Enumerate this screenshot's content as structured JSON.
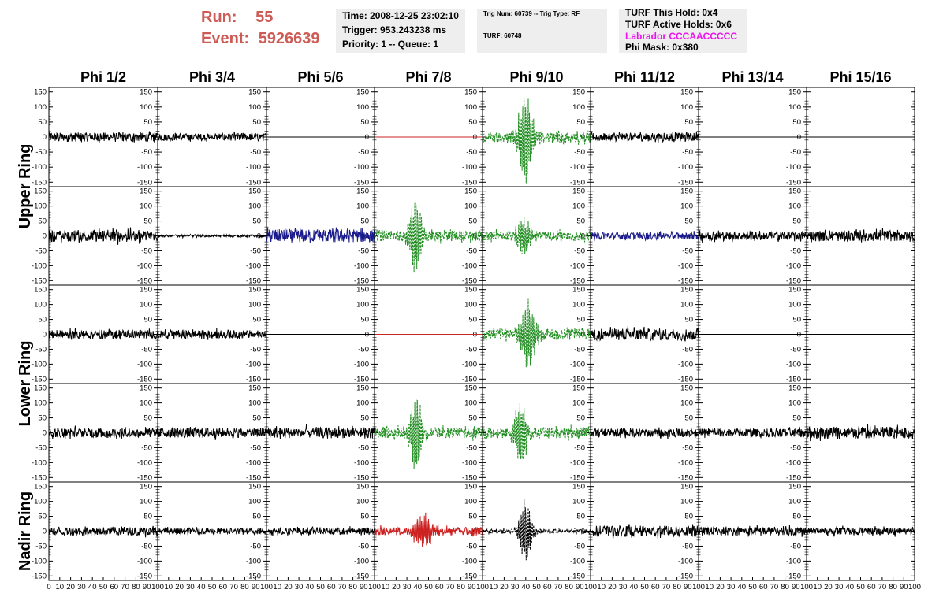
{
  "header": {
    "run_label": "Run:",
    "run_value": "55",
    "event_label": "Event:",
    "event_value": "5926639",
    "time": "Time: 2008-12-25 23:02:10",
    "trigger": "Trigger: 953.243238 ms",
    "priority": "Priority: 1 -- Queue: 1",
    "trig_num": "Trig Num: 60739 -- Trig Type: RF",
    "turf": "TURF: 60748",
    "turf_this_hold": "TURF This Hold: 0x4",
    "turf_active_holds": "TURF Active Holds: 0x6",
    "labrador": "Labrador CCCAACCCCC",
    "phi_mask": "Phi Mask: 0x380"
  },
  "colors": {
    "run_text": "#cc5c55",
    "labrador_text": "#ee11ee",
    "black_trace": "#000000",
    "blue_trace": "#1a1a8c",
    "green_trace": "#1e8c1e",
    "red_trace": "#cc2222"
  },
  "chart_data": {
    "type": "line",
    "columns": [
      "Phi 1/2",
      "Phi 3/4",
      "Phi 5/6",
      "Phi 7/8",
      "Phi 9/10",
      "Phi 11/12",
      "Phi 13/14",
      "Phi 15/16"
    ],
    "ring_labels": [
      "Upper Ring",
      "Lower Ring",
      "Nadir Ring"
    ],
    "xlim": [
      0,
      100
    ],
    "ylim": [
      -165,
      165
    ],
    "x_ticks": [
      0,
      10,
      20,
      30,
      40,
      50,
      60,
      70,
      80,
      90,
      100
    ],
    "x_tick_labels": [
      "0",
      "10",
      "20",
      "30",
      "40",
      "50",
      "60",
      "70",
      "80",
      "90",
      "100"
    ],
    "y_ticks": [
      150,
      100,
      50,
      0,
      -50,
      -100,
      -150
    ],
    "y_tick_labels": [
      "150",
      "100",
      "50",
      "0",
      "-50",
      "-100",
      "-150"
    ],
    "panels": [
      [
        {
          "style": "noise",
          "color": "black",
          "amp": 15
        },
        {
          "style": "noise",
          "color": "black",
          "amp": 12
        },
        {
          "style": "flat",
          "color": "black"
        },
        {
          "style": "flat",
          "color": "red"
        },
        {
          "style": "pulse",
          "color": "green",
          "dashed": true,
          "amp": 18,
          "peak": 155,
          "center": 40,
          "width": 9
        },
        {
          "style": "noise",
          "color": "black",
          "amp": 14
        },
        {
          "style": "flat",
          "color": "black"
        },
        {
          "style": "flat",
          "color": "black"
        }
      ],
      [
        {
          "style": "noise",
          "color": "black",
          "amp": 20
        },
        {
          "style": "noise",
          "color": "black",
          "amp": 4
        },
        {
          "style": "noise",
          "color": "blue",
          "amp": 22
        },
        {
          "style": "pulse",
          "color": "green",
          "dashed": true,
          "amp": 18,
          "peak": 140,
          "center": 38,
          "width": 8
        },
        {
          "style": "pulse",
          "color": "green",
          "dashed": true,
          "amp": 15,
          "peak": 70,
          "center": 38,
          "width": 8
        },
        {
          "style": "noise",
          "color": "blue",
          "amp": 12
        },
        {
          "style": "noise",
          "color": "black",
          "amp": 15
        },
        {
          "style": "noise",
          "color": "black",
          "amp": 18
        }
      ],
      [
        {
          "style": "noise",
          "color": "black",
          "amp": 14
        },
        {
          "style": "noise",
          "color": "black",
          "amp": 14
        },
        {
          "style": "flat",
          "color": "black"
        },
        {
          "style": "flat",
          "color": "red"
        },
        {
          "style": "pulse",
          "color": "green",
          "dashed": true,
          "amp": 18,
          "peak": 120,
          "center": 42,
          "width": 9
        },
        {
          "style": "noise",
          "color": "black",
          "amp": 20
        },
        {
          "style": "flat",
          "color": "black"
        },
        {
          "style": "flat",
          "color": "black"
        }
      ],
      [
        {
          "style": "noise",
          "color": "black",
          "amp": 16
        },
        {
          "style": "noise",
          "color": "black",
          "amp": 16
        },
        {
          "style": "noise",
          "color": "black",
          "amp": 18
        },
        {
          "style": "pulse",
          "color": "green",
          "dashed": true,
          "amp": 18,
          "peak": 130,
          "center": 38,
          "width": 8
        },
        {
          "style": "pulse",
          "color": "green",
          "dashed": true,
          "amp": 18,
          "peak": 120,
          "center": 35,
          "width": 8
        },
        {
          "style": "noise",
          "color": "black",
          "amp": 14
        },
        {
          "style": "noise",
          "color": "black",
          "amp": 14
        },
        {
          "style": "noise",
          "color": "black",
          "amp": 20
        }
      ],
      [
        {
          "style": "noise",
          "color": "black",
          "amp": 14
        },
        {
          "style": "noise",
          "color": "black",
          "amp": 10
        },
        {
          "style": "noise",
          "color": "black",
          "amp": 12
        },
        {
          "style": "pulse",
          "color": "red",
          "dashed": false,
          "amp": 14,
          "peak": 60,
          "center": 45,
          "width": 12
        },
        {
          "style": "pulse",
          "color": "black",
          "dashed": true,
          "amp": 8,
          "peak": 110,
          "center": 40,
          "width": 8
        },
        {
          "style": "noise",
          "color": "black",
          "amp": 18
        },
        {
          "style": "noise",
          "color": "black",
          "amp": 14
        },
        {
          "style": "noise",
          "color": "black",
          "amp": 12
        }
      ]
    ]
  }
}
